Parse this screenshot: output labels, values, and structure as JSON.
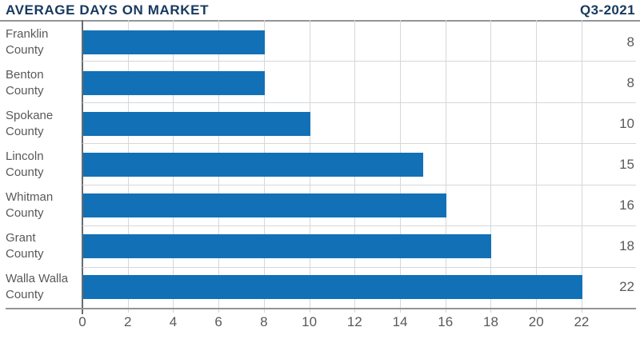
{
  "header": {
    "title": "AVERAGE DAYS ON MARKET",
    "period": "Q3-2021"
  },
  "chart_data": {
    "type": "bar",
    "orientation": "horizontal",
    "title": "AVERAGE DAYS ON MARKET",
    "subtitle": "Q3-2021",
    "categories": [
      [
        "Franklin",
        "County"
      ],
      [
        "Benton",
        "County"
      ],
      [
        "Spokane",
        "County"
      ],
      [
        "Lincoln",
        "County"
      ],
      [
        "Whitman",
        "County"
      ],
      [
        "Grant",
        "County"
      ],
      [
        "Walla Walla",
        "County"
      ]
    ],
    "values": [
      8,
      8,
      10,
      15,
      16,
      18,
      22
    ],
    "value_labels": [
      "8",
      "8",
      "10",
      "15",
      "16",
      "18",
      "22"
    ],
    "xlabel": "",
    "ylabel": "",
    "xticks": [
      0,
      2,
      4,
      6,
      8,
      10,
      12,
      14,
      16,
      18,
      20,
      22
    ],
    "xlim": [
      0,
      24.4
    ],
    "grid": true,
    "legend": false
  },
  "colors": {
    "bar": "#1271B6",
    "title": "#17395F",
    "grid": "#D6D7D8",
    "rule": "#939598",
    "axis_line": "#6A6B6D",
    "text": "#58595B"
  }
}
